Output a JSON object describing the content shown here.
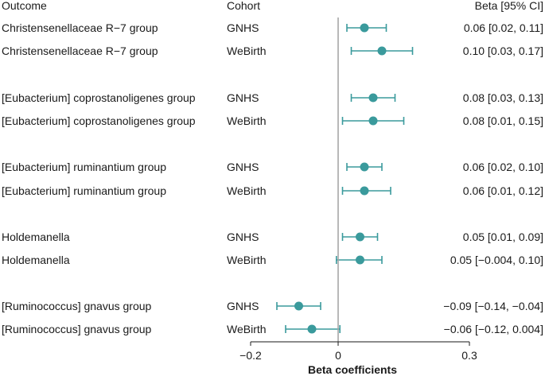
{
  "chart_data": {
    "type": "forest",
    "headers": {
      "outcome": "Outcome",
      "cohort": "Cohort",
      "beta": "Beta [95% CI]"
    },
    "xlabel": "Beta coefficients",
    "xlim": [
      -0.2,
      0.3
    ],
    "xticks": [
      -0.2,
      0,
      0.3
    ],
    "xtick_labels": [
      "−0.2",
      "0",
      "0.3"
    ],
    "reference_line": 0,
    "point_color": "#3a9a9c",
    "ref_line_color": "#a6a6a6",
    "rows": [
      {
        "outcome": "Christensenellaceae R−7 group",
        "cohort": "GNHS",
        "beta": 0.06,
        "lo": 0.02,
        "hi": 0.11,
        "label": "0.06 [0.02, 0.11]"
      },
      {
        "outcome": "Christensenellaceae R−7 group",
        "cohort": "WeBirth",
        "beta": 0.1,
        "lo": 0.03,
        "hi": 0.17,
        "label": "0.10 [0.03, 0.17]"
      },
      {
        "outcome": "[Eubacterium] coprostanoligenes group",
        "cohort": "GNHS",
        "beta": 0.08,
        "lo": 0.03,
        "hi": 0.13,
        "label": "0.08 [0.03, 0.13]"
      },
      {
        "outcome": "[Eubacterium] coprostanoligenes group",
        "cohort": "WeBirth",
        "beta": 0.08,
        "lo": 0.01,
        "hi": 0.15,
        "label": "0.08 [0.01, 0.15]"
      },
      {
        "outcome": "[Eubacterium] ruminantium group",
        "cohort": "GNHS",
        "beta": 0.06,
        "lo": 0.02,
        "hi": 0.1,
        "label": "0.06 [0.02, 0.10]"
      },
      {
        "outcome": "[Eubacterium] ruminantium group",
        "cohort": "WeBirth",
        "beta": 0.06,
        "lo": 0.01,
        "hi": 0.12,
        "label": "0.06 [0.01, 0.12]"
      },
      {
        "outcome": "Holdemanella",
        "cohort": "GNHS",
        "beta": 0.05,
        "lo": 0.01,
        "hi": 0.09,
        "label": "0.05 [0.01, 0.09]"
      },
      {
        "outcome": "Holdemanella",
        "cohort": "WeBirth",
        "beta": 0.05,
        "lo": -0.004,
        "hi": 0.1,
        "label": "0.05 [−0.004, 0.10]"
      },
      {
        "outcome": "[Ruminococcus] gnavus group",
        "cohort": "GNHS",
        "beta": -0.09,
        "lo": -0.14,
        "hi": -0.04,
        "label": "−0.09 [−0.14, −0.04]"
      },
      {
        "outcome": "[Ruminococcus] gnavus group",
        "cohort": "WeBirth",
        "beta": -0.06,
        "lo": -0.12,
        "hi": 0.004,
        "label": "−0.06 [−0.12, 0.004]"
      }
    ]
  }
}
